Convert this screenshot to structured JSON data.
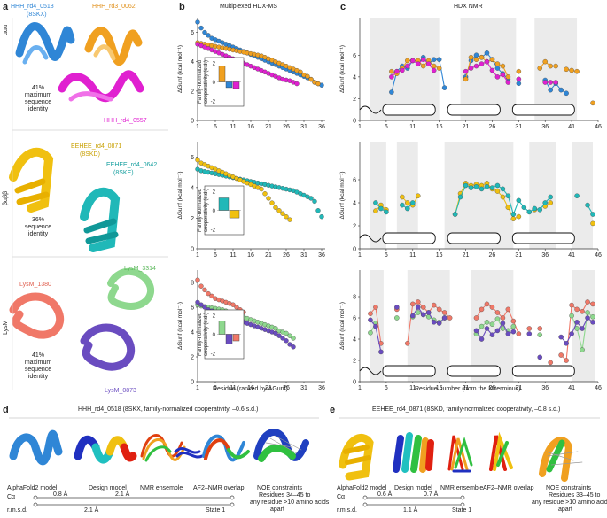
{
  "panels": {
    "a": "a",
    "b": "b",
    "c": "c",
    "d": "d",
    "e": "e"
  },
  "panel_a": {
    "fold_alpha": "ααα",
    "fold_beta": "βαββ",
    "fold_lysm": "LysM",
    "g1": {
      "m1": "HHH_rd4_0518",
      "m1b": "(8SKX)",
      "m2": "HHH_rd3_0062",
      "m3": "HHH_rd4_0557",
      "identity": [
        "41%",
        "maximum",
        "sequence",
        "identity"
      ]
    },
    "g2": {
      "m1": "EEHEE_rd4_0871",
      "m1b": "(8SKD)",
      "m2": "EEHEE_rd4_0642",
      "m2b": "(8SKE)",
      "identity": [
        "36%",
        "sequence",
        "identity"
      ]
    },
    "g3": {
      "m1": "LysM_3314",
      "m2": "LysM_1380",
      "m3": "LysM_0873",
      "identity": [
        "41%",
        "maximum",
        "sequence",
        "identity"
      ]
    }
  },
  "panel_b": {
    "title": "Multiplexed HDX-MS",
    "ylabel": "ΔGunf (kcal mol⁻¹)",
    "xlabel": "Residue (ranked by ΔGunf)",
    "inset_label": [
      "Family-normalized",
      "cooperativity (s.d.)"
    ]
  },
  "panel_c": {
    "title": "HDX NMR",
    "ylabel": "ΔGunf (kcal mol⁻¹)",
    "xlabel": "Residue number (from the N terminus)"
  },
  "panel_d": {
    "title": "HHH_rd4_0518 (8SKX, family-normalized cooperativity, –0.6 s.d.)",
    "labels": [
      "AlphaFold2 model",
      "Design model",
      "NMR ensemble",
      "AF2–NMR overlap",
      "NOE constraints"
    ],
    "noe": [
      "Residues 34–45 to",
      "any residue >10 amino acids",
      "apart"
    ],
    "ca": "Cα",
    "rmsd": "r.m.s.d.",
    "state": "State 1",
    "d1": "0.8 Å",
    "d2": "2.1 Å",
    "d3": "2.1 Å"
  },
  "panel_e": {
    "title": "EEHEE_rd4_0871 (8SKD, family-normalized cooperativity, –0.8 s.d.)",
    "labels": [
      "AlphaFold2 model",
      "Design model",
      "NMR ensemble",
      "AF2–NMR overlap",
      "NOE constraints"
    ],
    "noe": [
      "Residues 33–45 to",
      "any residue >10 amino acids",
      "apart"
    ],
    "ca": "Cα",
    "rmsd": "r.m.s.d.",
    "state": "State 1",
    "d1": "0.6 Å",
    "d2": "0.7 Å",
    "d3": "1.1 Å"
  },
  "colors": {
    "blue": "#2f86d6",
    "orange": "#f0a020",
    "magenta": "#e020d0",
    "yellow": "#f0c010",
    "teal": "#20b8b8",
    "salmon": "#f07868",
    "green": "#8ed88e",
    "purple": "#6a4cc0"
  },
  "chart_data": [
    {
      "id": "b1",
      "type": "scatter",
      "title": "Multiplexed HDX-MS",
      "xlabel": "",
      "ylabel": "ΔGunf (kcal mol⁻¹)",
      "xlim": [
        1,
        37
      ],
      "ylim": [
        0,
        7
      ],
      "xticks": [
        1,
        6,
        11,
        16,
        21,
        26,
        31,
        36
      ],
      "yticks": [
        0,
        2,
        4,
        6
      ],
      "series": [
        {
          "name": "HHH_rd4_0518",
          "color": "#2f86d6",
          "y": [
            6.7,
            6.3,
            6.0,
            5.8,
            5.6,
            5.5,
            5.4,
            5.3,
            5.2,
            5.1,
            5.0,
            4.9,
            4.8,
            4.7,
            4.6,
            4.5,
            4.4,
            4.3,
            4.2,
            4.1,
            4.0,
            3.9,
            3.8,
            3.7,
            3.6,
            3.5,
            3.4,
            3.3,
            3.2,
            3.1,
            3.0,
            2.9,
            2.8,
            2.6,
            2.5,
            2.4
          ]
        },
        {
          "name": "HHH_rd3_0062",
          "color": "#f0a020",
          "y": [
            5.3,
            5.25,
            5.2,
            5.15,
            5.1,
            5.05,
            5.0,
            4.95,
            4.9,
            4.85,
            4.8,
            4.75,
            4.7,
            4.65,
            4.6,
            4.55,
            4.5,
            4.45,
            4.4,
            4.3,
            4.2,
            4.1,
            4.0,
            3.9,
            3.8,
            3.7,
            3.6,
            3.5,
            3.4,
            3.3,
            3.1,
            3.0,
            2.8,
            2.6,
            2.5
          ]
        },
        {
          "name": "HHH_rd4_0557",
          "color": "#e020d0",
          "y": [
            5.2,
            5.1,
            5.0,
            4.9,
            4.8,
            4.7,
            4.6,
            4.5,
            4.4,
            4.3,
            4.2,
            4.1,
            4.0,
            3.9,
            3.8,
            3.7,
            3.6,
            3.5,
            3.4,
            3.3,
            3.2,
            3.1,
            3.0,
            2.9,
            2.8,
            2.75,
            2.7,
            2.6,
            2.5
          ]
        }
      ],
      "inset": {
        "ylim": [
          -2,
          2
        ],
        "values": [
          1.7,
          -0.6,
          -0.7
        ],
        "colors": [
          "#f0a020",
          "#2f86d6",
          "#e020d0"
        ]
      }
    },
    {
      "id": "b2",
      "type": "scatter",
      "xlabel": "",
      "ylabel": "ΔGunf (kcal mol⁻¹)",
      "xlim": [
        1,
        37
      ],
      "ylim": [
        0,
        7
      ],
      "xticks": [
        1,
        6,
        11,
        16,
        21,
        26,
        31,
        36
      ],
      "yticks": [
        0,
        2,
        4,
        6
      ],
      "series": [
        {
          "name": "EEHEE_rd4_0642",
          "color": "#20b8b8",
          "y": [
            5.2,
            5.1,
            5.05,
            5.0,
            4.95,
            4.9,
            4.85,
            4.8,
            4.75,
            4.7,
            4.65,
            4.6,
            4.55,
            4.5,
            4.45,
            4.4,
            4.35,
            4.3,
            4.25,
            4.2,
            4.15,
            4.1,
            4.05,
            4.0,
            3.95,
            3.9,
            3.85,
            3.8,
            3.7,
            3.6,
            3.5,
            3.4,
            3.3,
            3.1,
            2.5,
            2.1
          ]
        },
        {
          "name": "EEHEE_rd4_0871",
          "color": "#f0c010",
          "y": [
            5.8,
            5.6,
            5.5,
            5.4,
            5.3,
            5.2,
            5.1,
            5.0,
            4.9,
            4.8,
            4.7,
            4.6,
            4.5,
            4.4,
            4.3,
            4.2,
            4.1,
            4.0,
            3.9,
            3.6,
            3.3,
            3.0,
            2.7,
            2.5,
            2.3,
            2.1,
            1.9
          ]
        }
      ],
      "inset": {
        "ylim": [
          -2,
          2
        ],
        "values": [
          1.3,
          -0.8
        ],
        "colors": [
          "#20b8b8",
          "#f0c010"
        ]
      }
    },
    {
      "id": "b3",
      "type": "scatter",
      "xlabel": "Residue (ranked by ΔGunf)",
      "ylabel": "ΔGunf (kcal mol⁻¹)",
      "xlim": [
        1,
        37
      ],
      "ylim": [
        0,
        9
      ],
      "xticks": [
        1,
        6,
        11,
        16,
        21,
        26,
        31,
        36
      ],
      "yticks": [
        0,
        2,
        4,
        6,
        8
      ],
      "series": [
        {
          "name": "LysM_1380",
          "color": "#f07868",
          "y": [
            8.2,
            7.7,
            7.4,
            7.1,
            6.9,
            6.7,
            6.6,
            6.5,
            6.4,
            6.3,
            6.2,
            6.0,
            5.8,
            5.6
          ]
        },
        {
          "name": "LysM_3314",
          "color": "#8ed88e",
          "y": [
            6.2,
            6.1,
            6.05,
            6.0,
            5.95,
            5.9,
            5.85,
            5.8,
            5.7,
            5.6,
            5.5,
            5.4,
            5.3,
            5.2,
            5.1,
            5.0,
            4.9,
            4.8,
            4.7,
            4.6,
            4.5,
            4.4,
            4.3,
            4.1,
            4.0,
            3.9,
            3.7,
            3.5
          ]
        },
        {
          "name": "LysM_0873",
          "color": "#6a4cc0",
          "y": [
            6.4,
            6.2,
            6.0,
            5.8,
            5.7,
            5.6,
            5.5,
            5.4,
            5.3,
            5.2,
            5.1,
            5.0,
            4.9,
            4.8,
            4.7,
            4.6,
            4.5,
            4.4,
            4.3,
            4.2,
            4.1,
            4.0,
            3.9,
            3.7,
            3.5,
            3.3,
            3.0,
            2.8
          ]
        }
      ],
      "inset": {
        "ylim": [
          -2,
          2
        ],
        "values": [
          1.4,
          -1.0,
          -0.7
        ],
        "colors": [
          "#8ed88e",
          "#6a4cc0",
          "#f07868"
        ]
      }
    },
    {
      "id": "c1",
      "type": "scatter",
      "title": "HDX NMR",
      "xlabel": "",
      "ylabel": "ΔGunf (kcal mol⁻¹)",
      "xlim": [
        1,
        46
      ],
      "ylim": [
        0,
        7
      ],
      "xticks": [
        1,
        6,
        11,
        16,
        21,
        26,
        31,
        36,
        41,
        46
      ],
      "yticks": [
        0,
        2,
        4,
        6
      ],
      "shaded": [
        [
          3,
          16
        ],
        [
          20,
          30.5
        ],
        [
          34,
          42
        ]
      ],
      "series": [
        {
          "name": "HHH_rd4_0518",
          "color": "#2f86d6",
          "x": [
            7,
            8,
            9,
            10,
            11,
            12,
            13,
            14,
            15,
            16,
            17,
            21,
            22,
            23,
            24,
            25,
            26,
            27,
            28,
            29,
            31,
            36,
            37,
            38,
            39,
            40
          ],
          "y": [
            2.6,
            4.5,
            5.0,
            4.8,
            5.5,
            5.2,
            5.8,
            5.2,
            5.6,
            5.6,
            3.0,
            4.0,
            5.5,
            6.0,
            5.8,
            6.2,
            5.6,
            4.8,
            4.3,
            3.8,
            3.4,
            3.7,
            2.8,
            3.4,
            2.8,
            2.5
          ]
        },
        {
          "name": "HHH_rd3_0062",
          "color": "#f0a020",
          "x": [
            7,
            8,
            9,
            10,
            11,
            12,
            13,
            14,
            15,
            16,
            21,
            22,
            23,
            24,
            25,
            26,
            27,
            28,
            29,
            31,
            35,
            36,
            37,
            38,
            40,
            41,
            42,
            45
          ],
          "y": [
            4.5,
            4.3,
            4.8,
            5.5,
            5.5,
            5.5,
            5.0,
            5.5,
            5.0,
            4.8,
            3.8,
            5.8,
            5.6,
            5.8,
            5.4,
            5.6,
            5.2,
            5.0,
            4.0,
            4.5,
            4.8,
            5.4,
            5.0,
            5.0,
            4.7,
            4.6,
            4.5,
            1.6
          ]
        },
        {
          "name": "HHH_rd4_0557",
          "color": "#e020d0",
          "x": [
            7,
            8,
            9,
            10,
            11,
            12,
            13,
            14,
            15,
            21,
            22,
            23,
            24,
            25,
            26,
            27,
            28,
            29,
            31,
            36,
            37,
            38
          ],
          "y": [
            4.0,
            4.5,
            4.6,
            5.0,
            5.5,
            5.2,
            5.6,
            5.2,
            4.6,
            4.5,
            4.8,
            5.0,
            5.2,
            5.4,
            4.6,
            4.0,
            4.2,
            3.5,
            3.8,
            3.5,
            3.5,
            3.5
          ]
        }
      ]
    },
    {
      "id": "c2",
      "type": "scatter",
      "xlabel": "",
      "ylabel": "ΔGunf (kcal mol⁻¹)",
      "xlim": [
        1,
        46
      ],
      "ylim": [
        0,
        7
      ],
      "xticks": [
        1,
        6,
        11,
        16,
        21,
        26,
        31,
        36,
        41,
        46
      ],
      "yticks": [
        0,
        2,
        4,
        6
      ],
      "shaded": [
        [
          3,
          6
        ],
        [
          8,
          12
        ],
        [
          17,
          30
        ],
        [
          33,
          38
        ],
        [
          41,
          45
        ]
      ],
      "series": [
        {
          "name": "EEHEE_rd4_0871",
          "color": "#f0c010",
          "x": [
            4,
            5,
            6,
            9,
            10,
            11,
            12,
            19,
            20,
            21,
            22,
            23,
            24,
            25,
            26,
            27,
            28,
            29,
            30,
            31,
            34,
            36,
            37,
            45
          ],
          "y": [
            3.3,
            3.8,
            3.4,
            4.5,
            4.0,
            3.8,
            4.6,
            3.0,
            4.8,
            5.7,
            5.5,
            5.6,
            5.5,
            5.7,
            5.2,
            5.0,
            4.5,
            3.6,
            2.6,
            2.8,
            3.4,
            3.7,
            4.0,
            2.2
          ]
        },
        {
          "name": "EEHEE_rd4_0642",
          "color": "#20b8b8",
          "x": [
            4,
            5,
            6,
            9,
            10,
            11,
            19,
            20,
            21,
            22,
            23,
            24,
            25,
            26,
            27,
            28,
            29,
            30,
            31,
            32,
            33,
            34,
            35,
            36,
            37,
            42,
            44,
            45
          ],
          "y": [
            4.0,
            3.5,
            3.2,
            3.8,
            3.5,
            4.0,
            3.0,
            4.5,
            5.5,
            5.3,
            5.4,
            5.2,
            5.4,
            5.3,
            5.5,
            5.2,
            4.6,
            3.0,
            4.2,
            3.6,
            3.2,
            3.5,
            3.4,
            4.0,
            4.5,
            4.6,
            3.8,
            3.0
          ]
        }
      ]
    },
    {
      "id": "c3",
      "type": "scatter",
      "xlabel": "Residue number (from the N terminus)",
      "ylabel": "ΔGunf (kcal mol⁻¹)",
      "xlim": [
        1,
        46
      ],
      "ylim": [
        0,
        8
      ],
      "xticks": [
        1,
        6,
        11,
        16,
        21,
        26,
        31,
        36,
        41,
        46
      ],
      "yticks": [
        0,
        2,
        4,
        6,
        8
      ],
      "shaded": [
        [
          3,
          5.5
        ],
        [
          10,
          18
        ],
        [
          22,
          30
        ],
        [
          41,
          45.5
        ]
      ],
      "series": [
        {
          "name": "LysM_1380",
          "color": "#f07868",
          "x": [
            3,
            4,
            5,
            8,
            10,
            11,
            12,
            13,
            14,
            15,
            16,
            17,
            18,
            23,
            24,
            25,
            26,
            27,
            28,
            29,
            30,
            31,
            33,
            35,
            37,
            39,
            40,
            41,
            42,
            43,
            44,
            45
          ],
          "y": [
            6.4,
            7.0,
            3.6,
            6.8,
            3.6,
            7.3,
            7.5,
            7.0,
            6.5,
            7.2,
            6.8,
            6.5,
            6.0,
            6.0,
            6.8,
            7.3,
            7.0,
            6.5,
            6.0,
            6.8,
            5.7,
            4.5,
            5.0,
            5.0,
            1.8,
            2.5,
            2.0,
            7.2,
            6.8,
            6.6,
            7.5,
            7.3
          ]
        },
        {
          "name": "LysM_3314",
          "color": "#8ed88e",
          "x": [
            3,
            4,
            8,
            11,
            12,
            13,
            14,
            15,
            16,
            17,
            23,
            24,
            25,
            26,
            27,
            28,
            29,
            30,
            35,
            41,
            42,
            43,
            44,
            45
          ],
          "y": [
            4.6,
            5.5,
            6.0,
            6.1,
            6.5,
            6.3,
            6.1,
            5.8,
            5.6,
            6.0,
            4.5,
            5.2,
            5.6,
            5.4,
            5.9,
            5.0,
            4.8,
            5.2,
            4.4,
            6.2,
            5.0,
            3.0,
            6.5,
            6.1
          ]
        },
        {
          "name": "LysM_0873",
          "color": "#6a4cc0",
          "x": [
            3,
            4,
            5,
            8,
            11,
            12,
            13,
            14,
            15,
            16,
            17,
            23,
            24,
            25,
            26,
            27,
            28,
            29,
            30,
            33,
            35,
            39,
            40,
            41,
            42,
            43,
            44,
            45
          ],
          "y": [
            5.8,
            5.2,
            2.8,
            7.0,
            6.2,
            7.0,
            6.3,
            6.5,
            5.6,
            5.5,
            6.0,
            4.8,
            4.0,
            5.0,
            4.4,
            4.8,
            5.5,
            4.5,
            4.7,
            4.5,
            2.3,
            4.2,
            3.6,
            4.5,
            5.6,
            5.0,
            6.0,
            5.6
          ]
        }
      ]
    }
  ]
}
